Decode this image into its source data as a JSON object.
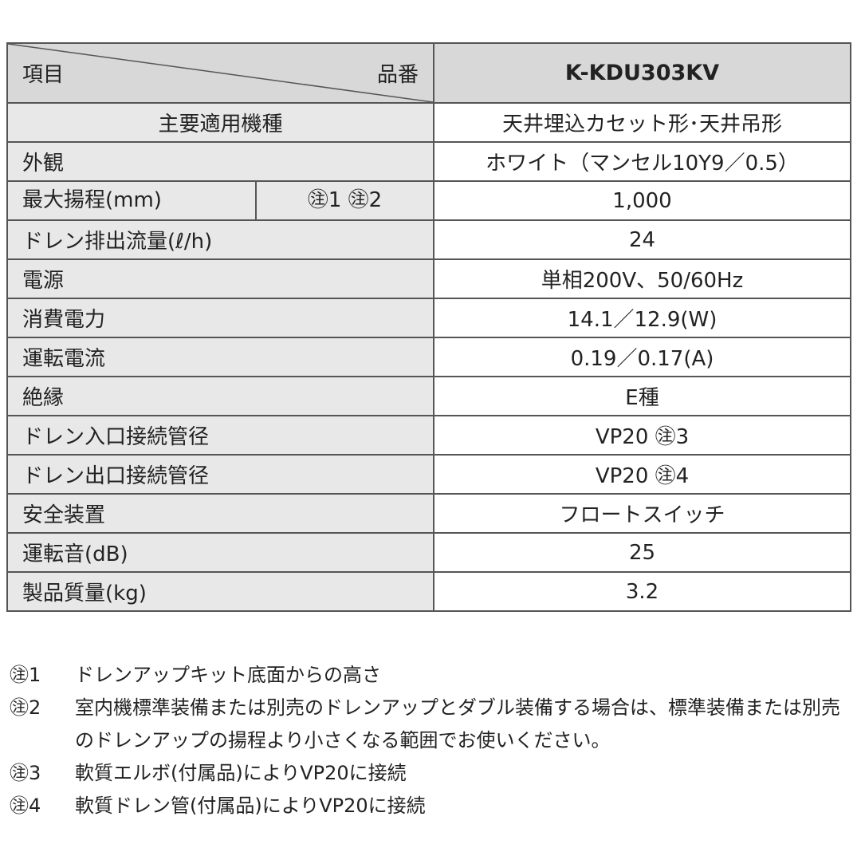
{
  "table": {
    "header": {
      "item_label": "項目",
      "model_label": "品番",
      "model": "K-KDU303KV"
    },
    "rows": [
      {
        "label": "主要適用機種",
        "value": "天井埋込カセット形･天井吊形",
        "centered": true
      },
      {
        "label": "外観",
        "value": "ホワイト（マンセル10Y9／0.5）"
      },
      {
        "label": "最大揚程(mm)",
        "note": "㊟1 ㊟2",
        "value": "1,000"
      },
      {
        "label": "ドレン排出流量(ℓ/h)",
        "value": "24"
      },
      {
        "label": "電源",
        "value": "単相200V、50/60Hz"
      },
      {
        "label": "消費電力",
        "value": "14.1／12.9(W)"
      },
      {
        "label": "運転電流",
        "value": "0.19／0.17(A)"
      },
      {
        "label": "絶縁",
        "value": "E種"
      },
      {
        "label": "ドレン入口接続管径",
        "value": "VP20 ㊟3"
      },
      {
        "label": "ドレン出口接続管径",
        "value": "VP20 ㊟4"
      },
      {
        "label": "安全装置",
        "value": "フロートスイッチ"
      },
      {
        "label": "運転音(dB)",
        "value": "25"
      },
      {
        "label": "製品質量(kg)",
        "value": "3.2"
      }
    ]
  },
  "notes": [
    {
      "key": "㊟1",
      "text": "ドレンアップキット底面からの高さ"
    },
    {
      "key": "㊟2",
      "text": "室内機標準装備または別売のドレンアップとダブル装備する場合は、標準装備または別売のドレンアップの揚程より小さくなる範囲でお使いください。"
    },
    {
      "key": "㊟3",
      "text": "軟質エルボ(付属品)によりVP20に接続"
    },
    {
      "key": "㊟4",
      "text": "軟質ドレン管(付属品)によりVP20に接続"
    }
  ]
}
